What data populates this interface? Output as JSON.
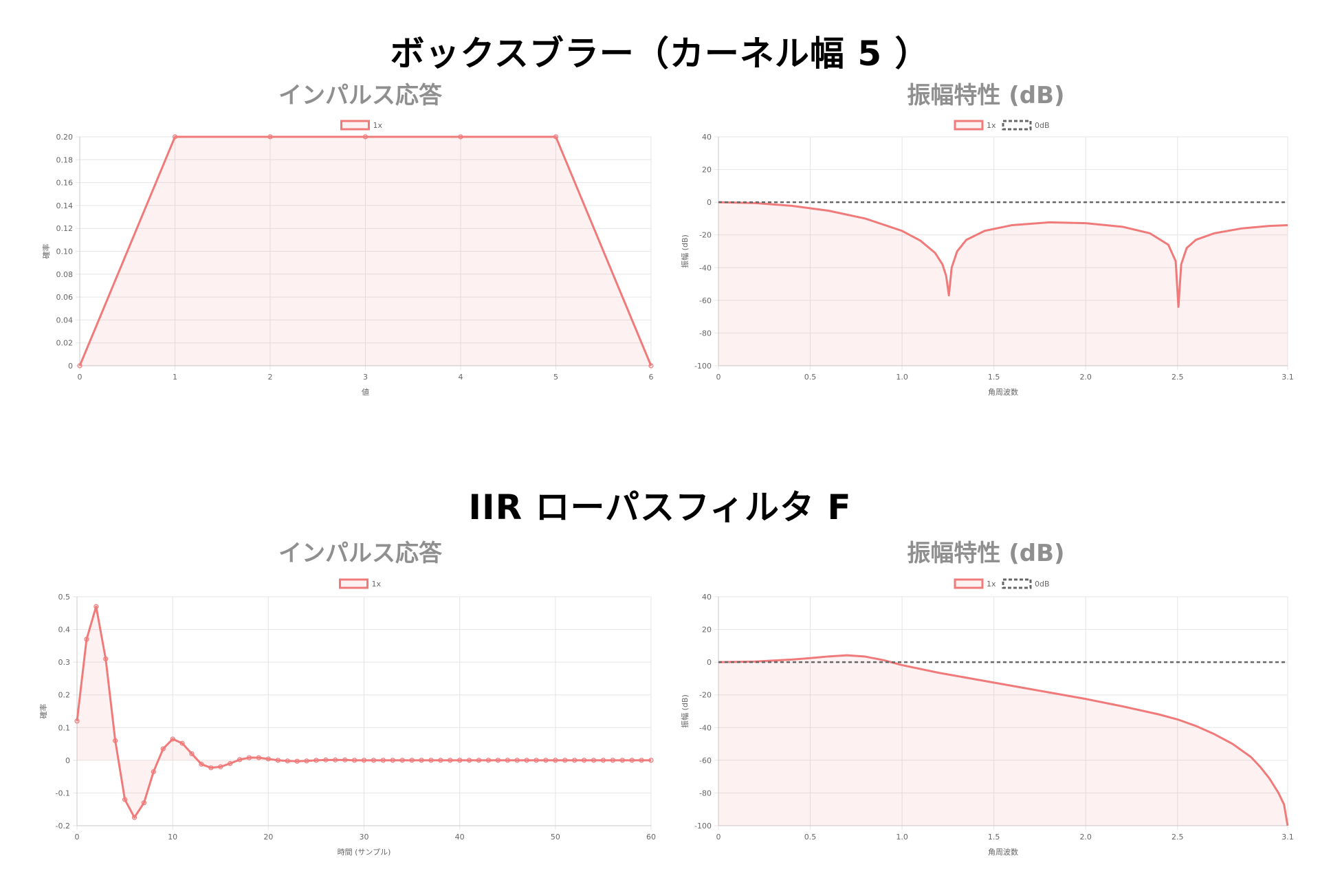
{
  "sections": [
    {
      "title": "ボックスブラー（カーネル幅 5 ）"
    },
    {
      "title": "IIR ローパスフィルタ F"
    }
  ],
  "colors": {
    "series": "#f07a7a",
    "series_fill": "rgba(240,122,122,0.10)",
    "zero_line": "#666666",
    "grid": "#e5e5e5"
  },
  "chart_data": [
    {
      "type": "line",
      "title": "インパルス応答",
      "xlabel": "値",
      "ylabel": "確率",
      "xlim": [
        0,
        6
      ],
      "ylim": [
        0,
        0.2
      ],
      "xticks": [
        "0",
        "1",
        "2",
        "3",
        "4",
        "5",
        "6"
      ],
      "xtick_values": [
        0,
        1,
        2,
        3,
        4,
        5,
        6
      ],
      "yticks": [
        "0",
        "0.02",
        "0.04",
        "0.06",
        "0.08",
        "0.10",
        "0.12",
        "0.14",
        "0.16",
        "0.18",
        "0.20"
      ],
      "ytick_values": [
        0,
        0.02,
        0.04,
        0.06,
        0.08,
        0.1,
        0.12,
        0.14,
        0.16,
        0.18,
        0.2
      ],
      "legend": [
        "1x"
      ],
      "series": [
        {
          "name": "1x",
          "x": [
            0,
            1,
            2,
            3,
            4,
            5,
            6
          ],
          "y": [
            0,
            0.2,
            0.2,
            0.2,
            0.2,
            0.2,
            0
          ]
        }
      ]
    },
    {
      "type": "line",
      "title": "振幅特性 (dB)",
      "xlabel": "角周波数",
      "ylabel": "振幅 (dB)",
      "xlim": [
        0,
        3.1
      ],
      "ylim": [
        -100,
        40
      ],
      "xticks": [
        "0",
        "0.5",
        "1.0",
        "1.5",
        "2.0",
        "2.5",
        "3.1"
      ],
      "xtick_values": [
        0,
        0.5,
        1.0,
        1.5,
        2.0,
        2.5,
        3.1
      ],
      "yticks": [
        "-100",
        "-80",
        "-60",
        "-40",
        "-20",
        "0",
        "20",
        "40"
      ],
      "ytick_values": [
        -100,
        -80,
        -60,
        -40,
        -20,
        0,
        20,
        40
      ],
      "legend": [
        "1x",
        "0dB"
      ],
      "series": [
        {
          "name": "1x",
          "x": [
            0,
            0.2,
            0.4,
            0.6,
            0.8,
            1.0,
            1.1,
            1.18,
            1.22,
            1.24,
            1.255,
            1.27,
            1.3,
            1.35,
            1.45,
            1.6,
            1.8,
            2.0,
            2.2,
            2.35,
            2.45,
            2.49,
            2.505,
            2.52,
            2.55,
            2.6,
            2.7,
            2.85,
            3.0,
            3.1
          ],
          "y": [
            0,
            -0.5,
            -2.2,
            -5.2,
            -10,
            -17.5,
            -23.5,
            -31,
            -38,
            -45,
            -57,
            -40,
            -30,
            -23,
            -17.5,
            -14,
            -12.3,
            -12.8,
            -15,
            -19,
            -26,
            -36,
            -64,
            -38,
            -28,
            -23,
            -19,
            -16,
            -14.5,
            -14
          ]
        },
        {
          "name": "0dB",
          "x": [
            0,
            3.1
          ],
          "y": [
            0,
            0
          ]
        }
      ]
    },
    {
      "type": "line",
      "title": "インパルス応答",
      "xlabel": "時間 (サンプル)",
      "ylabel": "確率",
      "xlim": [
        0,
        60
      ],
      "ylim": [
        -0.2,
        0.5
      ],
      "xticks": [
        "0",
        "10",
        "20",
        "30",
        "40",
        "50",
        "60"
      ],
      "xtick_values": [
        0,
        10,
        20,
        30,
        40,
        50,
        60
      ],
      "yticks": [
        "-0.2",
        "-0.1",
        "0",
        "0.1",
        "0.2",
        "0.3",
        "0.4",
        "0.5"
      ],
      "ytick_values": [
        -0.2,
        -0.1,
        0,
        0.1,
        0.2,
        0.3,
        0.4,
        0.5
      ],
      "legend": [
        "1x"
      ],
      "series": [
        {
          "name": "1x",
          "x": [
            0,
            1,
            2,
            3,
            4,
            5,
            6,
            7,
            8,
            9,
            10,
            11,
            12,
            13,
            14,
            15,
            16,
            17,
            18,
            19,
            20,
            21,
            22,
            23,
            24,
            25,
            26,
            27,
            28,
            29,
            30,
            31,
            32,
            33,
            34,
            35,
            36,
            37,
            38,
            39,
            40,
            41,
            42,
            43,
            44,
            45,
            46,
            47,
            48,
            49,
            50,
            51,
            52,
            53,
            54,
            55,
            56,
            57,
            58,
            59,
            60
          ],
          "y": [
            0.12,
            0.37,
            0.47,
            0.31,
            0.06,
            -0.12,
            -0.175,
            -0.13,
            -0.035,
            0.035,
            0.065,
            0.052,
            0.02,
            -0.012,
            -0.023,
            -0.02,
            -0.01,
            0.002,
            0.008,
            0.008,
            0.004,
            0,
            -0.002,
            -0.003,
            -0.002,
            0,
            0.001,
            0.001,
            0.001,
            0,
            0,
            0,
            0,
            0,
            0,
            0,
            0,
            0,
            0,
            0,
            0,
            0,
            0,
            0,
            0,
            0,
            0,
            0,
            0,
            0,
            0,
            0,
            0,
            0,
            0,
            0,
            0,
            0,
            0,
            0,
            0
          ]
        }
      ]
    },
    {
      "type": "line",
      "title": "振幅特性 (dB)",
      "xlabel": "角周波数",
      "ylabel": "振幅 (dB)",
      "xlim": [
        0,
        3.1
      ],
      "ylim": [
        -100,
        40
      ],
      "xticks": [
        "0",
        "0.5",
        "1.0",
        "1.5",
        "2.0",
        "2.5",
        "3.1"
      ],
      "xtick_values": [
        0,
        0.5,
        1.0,
        1.5,
        2.0,
        2.5,
        3.1
      ],
      "yticks": [
        "-100",
        "-80",
        "-60",
        "-40",
        "-20",
        "0",
        "20",
        "40"
      ],
      "ytick_values": [
        -100,
        -80,
        -60,
        -40,
        -20,
        0,
        20,
        40
      ],
      "legend": [
        "1x",
        "0dB"
      ],
      "series": [
        {
          "name": "1x",
          "x": [
            0,
            0.2,
            0.4,
            0.5,
            0.6,
            0.7,
            0.8,
            0.9,
            1.0,
            1.2,
            1.4,
            1.6,
            1.8,
            2.0,
            2.2,
            2.4,
            2.5,
            2.6,
            2.7,
            2.8,
            2.9,
            2.95,
            3.0,
            3.05,
            3.08,
            3.1
          ],
          "y": [
            0,
            0.4,
            1.6,
            2.5,
            3.5,
            4.2,
            3.4,
            1.2,
            -1.8,
            -6.5,
            -10.5,
            -14.5,
            -18.5,
            -22.5,
            -27,
            -32,
            -35,
            -39,
            -44,
            -50,
            -58,
            -64,
            -71,
            -80,
            -87,
            -100
          ]
        },
        {
          "name": "0dB",
          "x": [
            0,
            3.1
          ],
          "y": [
            0,
            0
          ]
        }
      ]
    }
  ]
}
